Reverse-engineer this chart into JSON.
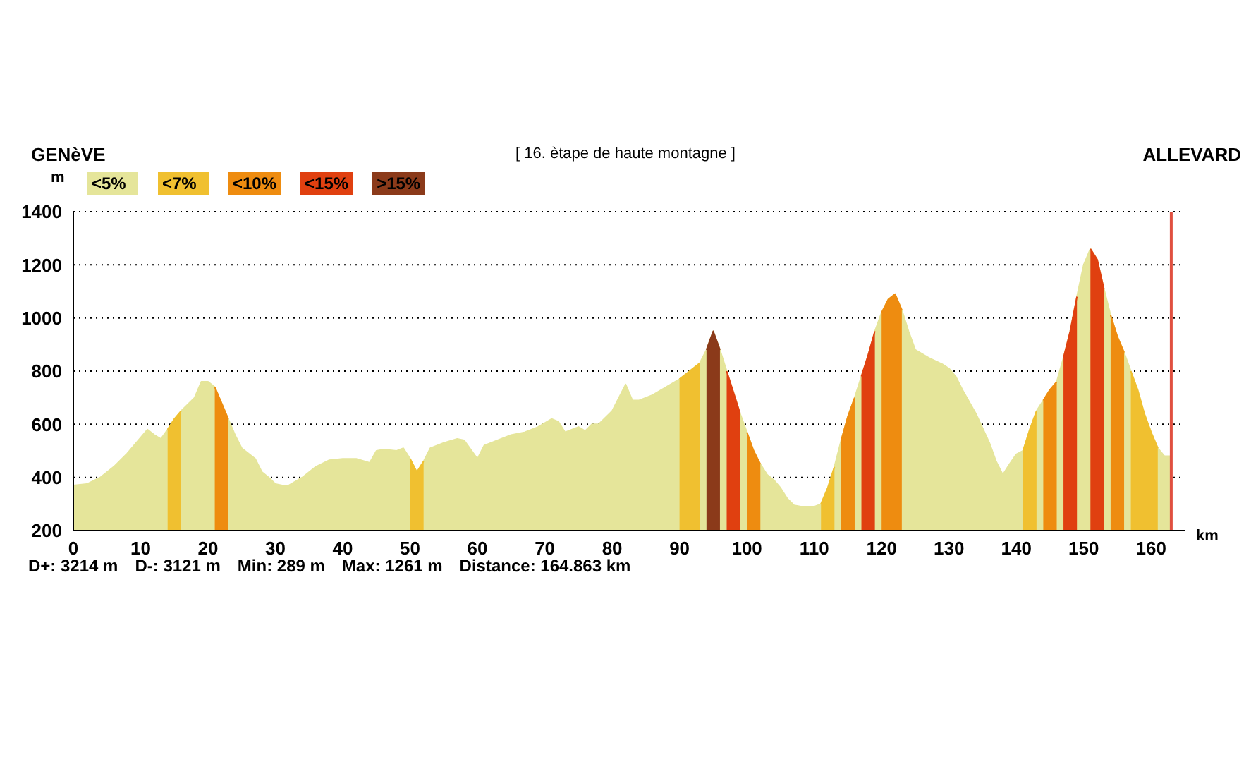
{
  "chart_data": {
    "type": "area",
    "title": "[ 16. ètape de haute montagne ]",
    "xlabel": "km",
    "ylabel": "m",
    "annotations": [
      "GENèVE",
      "ALLEVARD",
      "D+: 3214 m",
      "D-: 3121 m",
      "Min: 289 m",
      "Max: 1261 m",
      "Distance: 164.863 km"
    ],
    "x": [
      0,
      2,
      4,
      6,
      8,
      10,
      11,
      12,
      13,
      14,
      15,
      16,
      18,
      19,
      20,
      21,
      22,
      23,
      24,
      25,
      26,
      27,
      28,
      29,
      30,
      31,
      32,
      34,
      36,
      38,
      40,
      42,
      44,
      45,
      46,
      48,
      49,
      50,
      51,
      52,
      53,
      55,
      57,
      58,
      60,
      61,
      63,
      65,
      67,
      69,
      71,
      72,
      73,
      74,
      75,
      76,
      77,
      78,
      80,
      82,
      83,
      84,
      86,
      88,
      90,
      92,
      93,
      94,
      95,
      96,
      97,
      98,
      99,
      100,
      101,
      102,
      103,
      104,
      105,
      106,
      107,
      108,
      109,
      110,
      111,
      112,
      113,
      114,
      115,
      116,
      117,
      118,
      119,
      120,
      121,
      122,
      123,
      124,
      125,
      127,
      129,
      130,
      131,
      132,
      134,
      136,
      137,
      138,
      139,
      140,
      141,
      142,
      143,
      144,
      145,
      146,
      147,
      148,
      149,
      150,
      151,
      152,
      153,
      154,
      155,
      156,
      157,
      158,
      159,
      160,
      161,
      162,
      163
    ],
    "series": [
      {
        "name": "<5%",
        "color": "#e5e59a",
        "values": [
          370,
          375,
          400,
          440,
          490,
          550,
          580,
          560,
          545,
          580,
          620,
          650,
          700,
          760,
          760,
          740,
          680,
          620,
          560,
          510,
          490,
          470,
          420,
          400,
          375,
          370,
          370,
          400,
          440,
          465,
          470,
          470,
          455,
          500,
          505,
          500,
          510,
          470,
          420,
          460,
          510,
          530,
          545,
          540,
          470,
          520,
          540,
          560,
          570,
          590,
          620,
          610,
          570,
          580,
          590,
          575,
          600,
          600,
          650,
          750,
          690,
          690,
          710,
          740,
          770,
          810,
          830,
          880,
          950,
          880,
          800,
          720,
          640,
          570,
          500,
          450,
          410,
          390,
          360,
          320,
          295,
          290,
          290,
          290,
          300,
          360,
          440,
          540,
          630,
          700,
          780,
          860,
          950,
          1020,
          1070,
          1090,
          1030,
          950,
          880,
          850,
          826,
          810,
          780,
          730,
          640,
          530,
          460,
          410,
          450,
          487,
          500,
          580,
          650,
          690,
          730,
          760,
          850,
          950,
          1080,
          1200,
          1260,
          1220,
          1110,
          1010,
          930,
          870,
          800,
          730,
          640,
          570,
          510,
          480,
          480
        ]
      },
      {
        "name": "<7%",
        "color": "#f0c030",
        "x": [
          14,
          15,
          16,
          30,
          50,
          51,
          52,
          80,
          90,
          92,
          93,
          104,
          111,
          112,
          113,
          130,
          141,
          142,
          143,
          150,
          157,
          158,
          159,
          160,
          161
        ],
        "values": [
          580,
          620,
          650,
          null,
          470,
          420,
          460,
          null,
          770,
          810,
          830,
          null,
          300,
          360,
          440,
          null,
          500,
          580,
          650,
          null,
          800,
          730,
          640,
          570,
          510
        ]
      },
      {
        "name": "<10%",
        "color": "#ee8c10",
        "x": [
          21,
          22,
          23,
          60,
          100,
          101,
          102,
          108,
          114,
          115,
          116,
          117,
          120,
          121,
          122,
          123,
          130,
          144,
          145,
          146,
          150,
          154,
          155,
          156
        ],
        "values": [
          740,
          680,
          620,
          null,
          570,
          500,
          450,
          null,
          540,
          630,
          700,
          null,
          1020,
          1070,
          1090,
          1030,
          null,
          690,
          730,
          760,
          null,
          1010,
          930,
          870
        ]
      },
      {
        "name": "<15%",
        "color": "#e04010",
        "x": [
          97,
          98,
          99,
          110,
          117,
          118,
          119,
          130,
          147,
          148,
          149,
          150,
          151,
          152,
          153
        ],
        "values": [
          800,
          720,
          640,
          null,
          780,
          860,
          950,
          null,
          850,
          950,
          1080,
          null,
          1260,
          1220,
          1110
        ]
      },
      {
        "name": ">15%",
        "color": "#8b3a1a",
        "x": [
          94,
          95,
          96
        ],
        "values": [
          880,
          950,
          880
        ]
      }
    ],
    "xlim": [
      0,
      165
    ],
    "xticks": [
      0,
      10,
      20,
      30,
      40,
      50,
      60,
      70,
      80,
      90,
      100,
      110,
      120,
      130,
      140,
      150,
      160
    ],
    "ylim": [
      200,
      1400
    ],
    "yticks": [
      200,
      400,
      600,
      800,
      1000,
      1200,
      1400
    ],
    "grid": "y",
    "legend": "top left",
    "marker": "none",
    "ref_lines": [
      {
        "axis": "x",
        "value": 163,
        "color": "#e05040"
      }
    ]
  }
}
